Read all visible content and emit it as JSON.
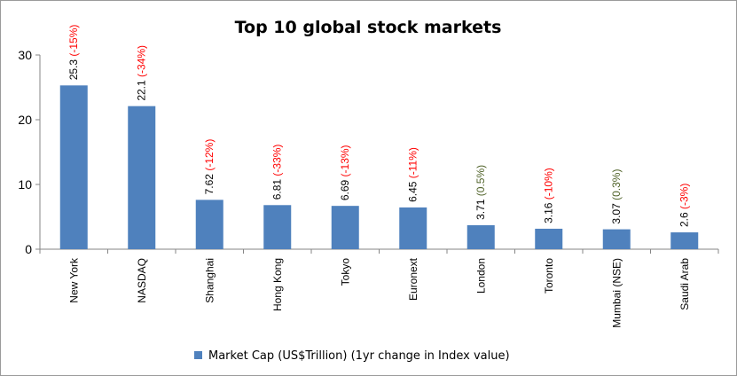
{
  "chart_data": {
    "type": "bar",
    "title": "Top 10 global stock markets",
    "categories": [
      "New York",
      "NASDAQ",
      "Shanghai",
      "Hong Kong",
      "Tokyo",
      "Euronext",
      "London",
      "Toronto",
      "Mumbai (NSE)",
      "Saudi Arab"
    ],
    "series": [
      {
        "name": "Market Cap (US$Trillion) (1yr change in Index value)",
        "values": [
          25.3,
          22.1,
          7.62,
          6.81,
          6.69,
          6.45,
          3.71,
          3.16,
          3.07,
          2.6
        ],
        "changes": [
          "(-15%)",
          "(-34%)",
          "(-12%)",
          "(-33%)",
          "(-13%)",
          "(-11%)",
          "(0.5%)",
          "(-10%)",
          "(0.3%)",
          "(-3%)"
        ]
      }
    ],
    "value_labels": [
      "25.3",
      "22.1",
      "7.62",
      "6.81",
      "6.69",
      "6.45",
      "3.71",
      "3.16",
      "3.07",
      "2.6"
    ],
    "ylim": [
      0,
      30
    ],
    "yticks": [
      0,
      10,
      20,
      30
    ],
    "grid": false,
    "legend_position": "bottom",
    "colors": {
      "bar": "#4f81bd",
      "negative_change": "#ff0000",
      "positive_change": "#4f6228"
    }
  }
}
